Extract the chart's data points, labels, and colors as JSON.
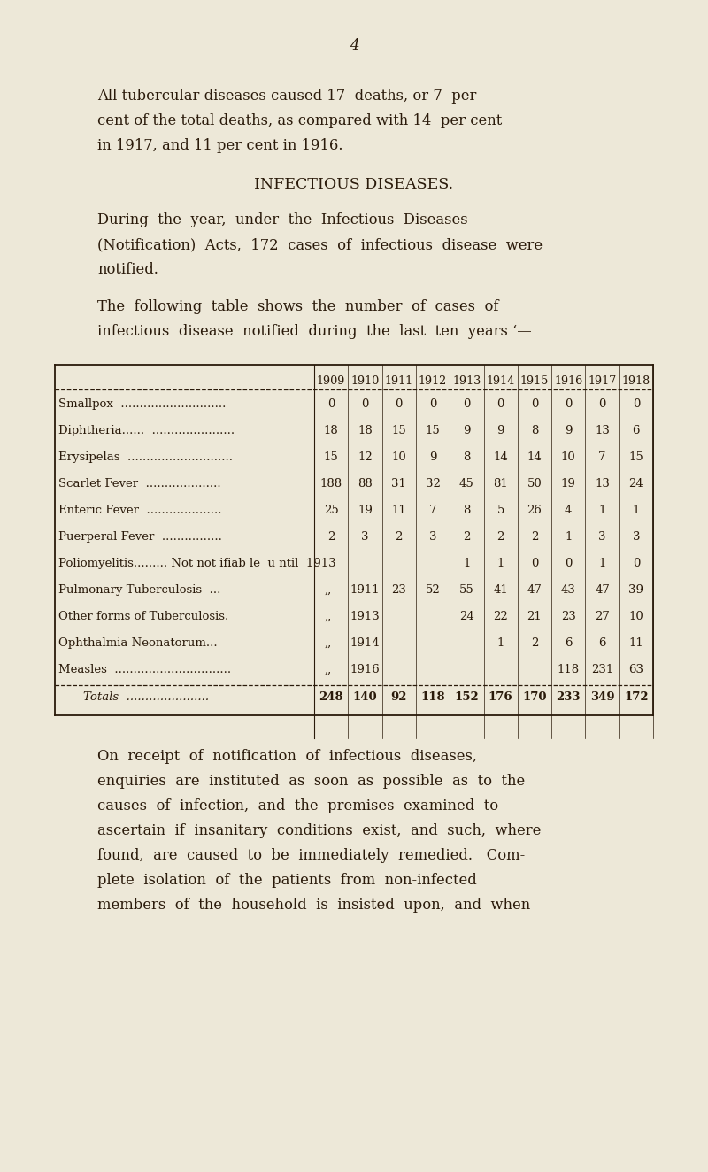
{
  "bg_color": "#ede8d8",
  "text_color": "#2a1a0a",
  "page_number": "4",
  "para1_lines": [
    "All tubercular diseases caused 17  deaths, or 7  per",
    "cent of the total deaths, as compared with 14  per cent",
    "in 1917, and 11 per cent in 1916."
  ],
  "section_title": "INFECTIOUS DISEASES.",
  "para2_lines": [
    "During  the  year,  under  the  Infectious  Diseases",
    "(Notification)  Acts,  172  cases  of  infectious  disease  were",
    "notified."
  ],
  "para3_lines": [
    "The  following  table  shows  the  number  of  cases  of",
    "infectious  disease  notified  during  the  last  ten  years ‘—"
  ],
  "years": [
    "1909",
    "1910",
    "1911",
    "1912",
    "1913",
    "1914",
    "1915",
    "1916",
    "1917",
    "1918"
  ],
  "table_rows": [
    {
      "label": "Smallpox  ............................",
      "values": [
        "0",
        "0",
        "0",
        "0",
        "0",
        "0",
        "0",
        "0",
        "0",
        "0"
      ],
      "type": "normal"
    },
    {
      "label": "Diphtheria......  ......................",
      "values": [
        "18",
        "18",
        "15",
        "15",
        "9",
        "9",
        "8",
        "9",
        "13",
        "6"
      ],
      "type": "normal"
    },
    {
      "label": "Erysipelas  ............................",
      "values": [
        "15",
        "12",
        "10",
        "9",
        "8",
        "14",
        "14",
        "10",
        "7",
        "15"
      ],
      "type": "normal"
    },
    {
      "label": "Scarlet Fever  ....................",
      "values": [
        "188",
        "88",
        "31",
        "32",
        "45",
        "81",
        "50",
        "19",
        "13",
        "24"
      ],
      "type": "normal"
    },
    {
      "label": "Enteric Fever  ....................",
      "values": [
        "25",
        "19",
        "11",
        "7",
        "8",
        "5",
        "26",
        "4",
        "1",
        "1"
      ],
      "type": "normal"
    },
    {
      "label": "Puerperal Fever  ................",
      "values": [
        "2",
        "3",
        "2",
        "3",
        "2",
        "2",
        "2",
        "1",
        "3",
        "3"
      ],
      "type": "normal"
    },
    {
      "label": "Poliomyelitis......... Not not ifiab le  u ntil  1913",
      "values": [
        "",
        "",
        "",
        "",
        "1",
        "1",
        "0",
        "0",
        "1",
        "0"
      ],
      "type": "polio"
    },
    {
      "label": "Pulmonary Tuberculosis  ...",
      "prefix": ",,",
      "year_start": "1911",
      "values": [
        "",
        "",
        "23",
        "52",
        "55",
        "41",
        "47",
        "43",
        "47",
        "39"
      ],
      "type": "notifiable"
    },
    {
      "label": "Other forms of Tuberculosis.",
      "prefix": ",,",
      "year_start": "1913",
      "values": [
        "",
        "",
        "",
        "",
        "24",
        "22",
        "21",
        "23",
        "27",
        "10"
      ],
      "type": "notifiable"
    },
    {
      "label": "Ophthalmia Neonatorum...",
      "prefix": ",,",
      "year_start": "1914",
      "values": [
        "",
        "",
        "",
        "",
        "",
        "1",
        "2",
        "6",
        "6",
        "11"
      ],
      "type": "notifiable"
    },
    {
      "label": "Measles  ...............................",
      "prefix": ",,",
      "year_start": "1916",
      "values": [
        "",
        "",
        "",
        "",
        "",
        "",
        "",
        "118",
        "231",
        "63"
      ],
      "type": "notifiable"
    }
  ],
  "totals_label": "Totals  ......................",
  "totals": [
    "248",
    "140",
    "92",
    "118",
    "152",
    "176",
    "170",
    "233",
    "349",
    "172"
  ],
  "para4_lines": [
    "On  receipt  of  notification  of  infectious  diseases,",
    "enquiries  are  instituted  as  soon  as  possible  as  to  the",
    "causes  of  infection,  and  the  premises  examined  to",
    "ascertain  if  insanitary  conditions  exist,  and  such,  where",
    "found,  are  caused  to  be  immediately  remedied.   Com-",
    "plete  isolation  of  the  patients  from  non-infected",
    "members  of  the  household  is  insisted  upon,  and  when"
  ]
}
